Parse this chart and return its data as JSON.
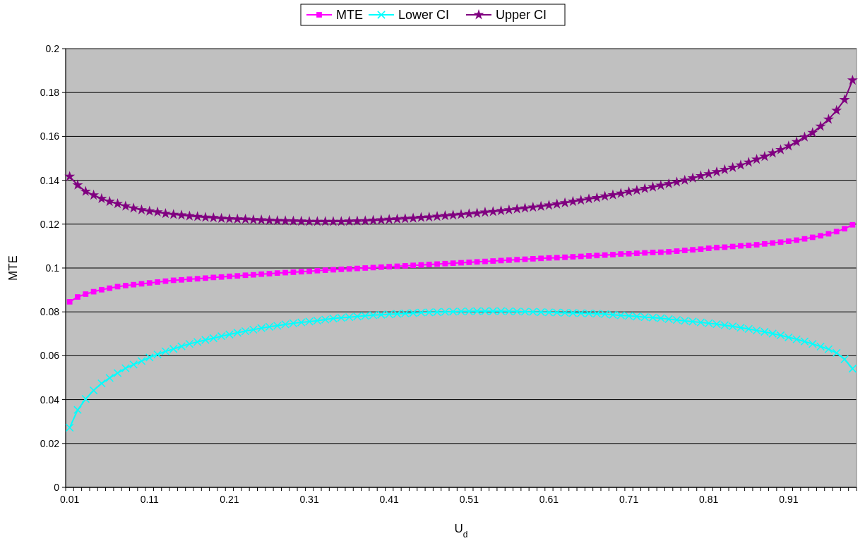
{
  "chart_data": {
    "type": "line",
    "xlabel": "U$_{d}$",
    "ylabel": "MTE",
    "categories": [
      "0.01",
      null,
      null,
      null,
      null,
      null,
      null,
      null,
      null,
      null,
      "0.11",
      null,
      null,
      null,
      null,
      null,
      null,
      null,
      null,
      null,
      "0.21",
      null,
      null,
      null,
      null,
      null,
      null,
      null,
      null,
      null,
      "0.31",
      null,
      null,
      null,
      null,
      null,
      null,
      null,
      null,
      null,
      "0.41",
      null,
      null,
      null,
      null,
      null,
      null,
      null,
      null,
      null,
      "0.51",
      null,
      null,
      null,
      null,
      null,
      null,
      null,
      null,
      null,
      "0.61",
      null,
      null,
      null,
      null,
      null,
      null,
      null,
      null,
      null,
      "0.71",
      null,
      null,
      null,
      null,
      null,
      null,
      null,
      null,
      null,
      "0.81",
      null,
      null,
      null,
      null,
      null,
      null,
      null,
      null,
      null,
      "0.91",
      null,
      null,
      null,
      null,
      null,
      null,
      null,
      null
    ],
    "series": [
      {
        "name": "MTE",
        "color": "#ff00ff",
        "marker": "square",
        "values": [
          0.0846,
          0.0868,
          0.0881,
          0.0892,
          0.0901,
          0.0908,
          0.0915,
          0.092,
          0.0924,
          0.0928,
          0.0932,
          0.0936,
          0.094,
          0.0944,
          0.0946,
          0.0949,
          0.0951,
          0.0954,
          0.0957,
          0.0959,
          0.0962,
          0.0964,
          0.0967,
          0.0969,
          0.0972,
          0.0974,
          0.0977,
          0.0979,
          0.0981,
          0.0983,
          0.0985,
          0.0988,
          0.099,
          0.0992,
          0.0994,
          0.0996,
          0.0998,
          0.1,
          0.1002,
          0.1004,
          0.1006,
          0.1008,
          0.101,
          0.1012,
          0.1014,
          0.1016,
          0.1018,
          0.102,
          0.1022,
          0.1024,
          0.1026,
          0.1028,
          0.103,
          0.1032,
          0.1034,
          0.1036,
          0.1038,
          0.104,
          0.1042,
          0.1044,
          0.1046,
          0.1047,
          0.1049,
          0.1051,
          0.1053,
          0.1055,
          0.1057,
          0.1059,
          0.1061,
          0.1064,
          0.1065,
          0.1067,
          0.1069,
          0.1071,
          0.1072,
          0.1074,
          0.1077,
          0.108,
          0.1083,
          0.1086,
          0.109,
          0.1093,
          0.1095,
          0.1098,
          0.1101,
          0.1103,
          0.1106,
          0.111,
          0.1114,
          0.1118,
          0.1122,
          0.1127,
          0.1133,
          0.114,
          0.1147,
          0.1156,
          0.1166,
          0.1179,
          0.1197
        ]
      },
      {
        "name": "Lower CI",
        "color": "#00ffff",
        "marker": "cross",
        "values": [
          0.0272,
          0.0353,
          0.0403,
          0.0442,
          0.0474,
          0.0499,
          0.0521,
          0.0543,
          0.056,
          0.0576,
          0.0592,
          0.0606,
          0.062,
          0.0631,
          0.0643,
          0.0654,
          0.0663,
          0.0672,
          0.068,
          0.0689,
          0.0697,
          0.0705,
          0.0712,
          0.0719,
          0.0726,
          0.0732,
          0.0737,
          0.0743,
          0.0748,
          0.0752,
          0.0756,
          0.076,
          0.0765,
          0.077,
          0.0773,
          0.0776,
          0.0779,
          0.0782,
          0.0785,
          0.0787,
          0.0789,
          0.0791,
          0.0793,
          0.0795,
          0.0797,
          0.0798,
          0.0799,
          0.08,
          0.0801,
          0.0802,
          0.0802,
          0.0803,
          0.0803,
          0.0803,
          0.0803,
          0.0802,
          0.0802,
          0.0801,
          0.08,
          0.0799,
          0.0798,
          0.0797,
          0.0796,
          0.0795,
          0.0794,
          0.0793,
          0.0792,
          0.079,
          0.0787,
          0.0784,
          0.0782,
          0.0779,
          0.0776,
          0.0774,
          0.0771,
          0.0767,
          0.0763,
          0.0759,
          0.0756,
          0.0752,
          0.0748,
          0.0744,
          0.0739,
          0.0734,
          0.0728,
          0.0722,
          0.0715,
          0.0709,
          0.0701,
          0.0693,
          0.0684,
          0.0675,
          0.0665,
          0.0654,
          0.0642,
          0.063,
          0.0613,
          0.0584,
          0.0541
        ]
      },
      {
        "name": "Upper CI",
        "color": "#800080",
        "marker": "star",
        "values": [
          0.1417,
          0.1378,
          0.1349,
          0.1332,
          0.1316,
          0.1303,
          0.1293,
          0.1282,
          0.1273,
          0.1265,
          0.1259,
          0.1255,
          0.1248,
          0.1244,
          0.1241,
          0.1237,
          0.1234,
          0.1231,
          0.1229,
          0.1226,
          0.1224,
          0.1223,
          0.1222,
          0.122,
          0.1219,
          0.1217,
          0.1216,
          0.1215,
          0.1214,
          0.1213,
          0.1212,
          0.1212,
          0.1212,
          0.1212,
          0.1212,
          0.1213,
          0.1214,
          0.1215,
          0.1217,
          0.1219,
          0.1221,
          0.1223,
          0.1225,
          0.1227,
          0.123,
          0.1232,
          0.1235,
          0.1238,
          0.1241,
          0.1244,
          0.1247,
          0.125,
          0.1254,
          0.1257,
          0.1261,
          0.1265,
          0.1269,
          0.1273,
          0.1277,
          0.1281,
          0.1286,
          0.1291,
          0.1297,
          0.1303,
          0.1309,
          0.1315,
          0.132,
          0.1327,
          0.1333,
          0.134,
          0.1348,
          0.1354,
          0.1362,
          0.1369,
          0.1376,
          0.1384,
          0.1392,
          0.14,
          0.141,
          0.142,
          0.1429,
          0.1438,
          0.1448,
          0.1458,
          0.1469,
          0.1482,
          0.1495,
          0.1508,
          0.1524,
          0.1539,
          0.1556,
          0.1575,
          0.1597,
          0.1617,
          0.1646,
          0.1678,
          0.1718,
          0.1767,
          0.1856
        ]
      }
    ],
    "ylim": [
      0,
      0.2
    ],
    "yticks": [
      0,
      0.02,
      0.04,
      0.06,
      0.08,
      0.1,
      0.12,
      0.14,
      0.16,
      0.18,
      0.2
    ],
    "grid": "y",
    "legend": "top",
    "line_style": "solid"
  }
}
